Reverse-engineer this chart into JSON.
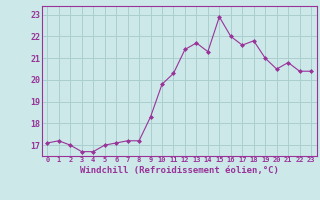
{
  "x": [
    0,
    1,
    2,
    3,
    4,
    5,
    6,
    7,
    8,
    9,
    10,
    11,
    12,
    13,
    14,
    15,
    16,
    17,
    18,
    19,
    20,
    21,
    22,
    23
  ],
  "y": [
    17.1,
    17.2,
    17.0,
    16.7,
    16.7,
    17.0,
    17.1,
    17.2,
    17.2,
    18.3,
    19.8,
    20.3,
    21.4,
    21.7,
    21.3,
    22.9,
    22.0,
    21.6,
    21.8,
    21.0,
    20.5,
    20.8,
    20.4,
    20.4
  ],
  "line_color": "#993399",
  "marker": "D",
  "marker_size": 2,
  "bg_color": "#cce8e8",
  "grid_color": "#aacfcf",
  "xlabel": "Windchill (Refroidissement éolien,°C)",
  "xlabel_fontsize": 6.5,
  "xtick_labels": [
    "0",
    "1",
    "2",
    "3",
    "4",
    "5",
    "6",
    "7",
    "8",
    "9",
    "10",
    "11",
    "12",
    "13",
    "14",
    "15",
    "16",
    "17",
    "18",
    "19",
    "20",
    "21",
    "22",
    "23"
  ],
  "ytick_labels": [
    "17",
    "18",
    "19",
    "20",
    "21",
    "22",
    "23"
  ],
  "yticks": [
    17,
    18,
    19,
    20,
    21,
    22,
    23
  ],
  "ylim": [
    16.5,
    23.4
  ],
  "xlim": [
    -0.5,
    23.5
  ]
}
